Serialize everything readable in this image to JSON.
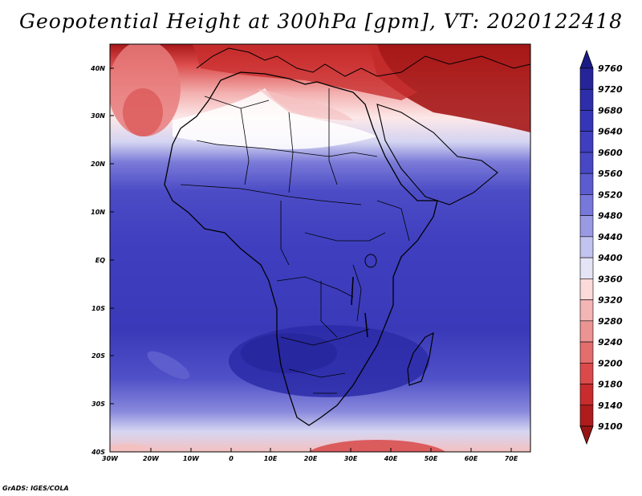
{
  "title": "Geopotential Height at 300hPa [gpm], VT: 2020122418",
  "credit": "GrADS: IGES/COLA",
  "map": {
    "region": "Africa",
    "lat_ticks": [
      "40N",
      "30N",
      "20N",
      "10N",
      "EQ",
      "10S",
      "20S",
      "30S",
      "40S"
    ],
    "lon_ticks": [
      "30W",
      "20W",
      "10W",
      "0",
      "10E",
      "20E",
      "30E",
      "40E",
      "50E",
      "60E",
      "70E"
    ],
    "lat_range": [
      -40,
      45
    ],
    "lon_range": [
      -30,
      75
    ]
  },
  "colorbar": {
    "levels": [
      9760,
      9720,
      9680,
      9640,
      9600,
      9560,
      9520,
      9480,
      9440,
      9400,
      9360,
      9320,
      9280,
      9240,
      9200,
      9180,
      9140,
      9100
    ],
    "colors": [
      "#1b1b87",
      "#252599",
      "#2e2eab",
      "#3535b8",
      "#3e3ebe",
      "#4848c5",
      "#5c5cd0",
      "#7878da",
      "#9a9ae4",
      "#c3c3ef",
      "#e4e4f6",
      "#fbdada",
      "#f4b5b5",
      "#ec9393",
      "#e46d6d",
      "#db4a4a",
      "#c82c2c",
      "#ae1c1c",
      "#981515"
    ]
  }
}
